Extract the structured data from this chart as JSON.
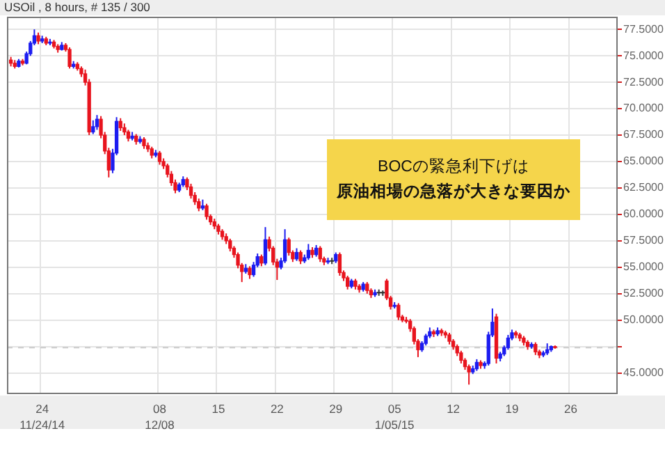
{
  "chart_data": {
    "type": "candlestick",
    "title": "USOil , 8 hours, # 135 / 300",
    "categories": [
      null,
      null,
      null,
      null,
      null,
      null,
      null,
      null,
      null,
      "24\n11/24/14",
      null,
      null,
      null,
      null,
      null,
      null,
      null,
      null,
      null,
      null,
      null,
      null,
      null,
      null,
      null,
      null,
      null,
      null,
      null,
      null,
      null,
      null,
      null,
      null,
      null,
      null,
      null,
      null,
      null,
      "08\n12/08",
      null,
      null,
      null,
      null,
      null,
      null,
      null,
      null,
      null,
      null,
      null,
      null,
      null,
      null,
      "15",
      null,
      null,
      null,
      null,
      null,
      null,
      null,
      null,
      null,
      null,
      null,
      null,
      null,
      null,
      "22",
      null,
      null,
      null,
      null,
      null,
      null,
      null,
      null,
      null,
      null,
      null,
      null,
      null,
      null,
      "29",
      null,
      null,
      null,
      null,
      null,
      null,
      null,
      null,
      null,
      null,
      null,
      null,
      null,
      null,
      "05\n1/05/15",
      null,
      null,
      null,
      null,
      null,
      null,
      null,
      null,
      null,
      null,
      null,
      null,
      null,
      null,
      "12",
      null,
      null,
      null,
      null,
      null,
      null,
      null,
      null,
      null,
      null,
      null,
      null,
      null,
      null,
      "19",
      null,
      null,
      null,
      null,
      null,
      null,
      null,
      null,
      null,
      null,
      null,
      null,
      null,
      null,
      "26",
      null,
      null,
      null,
      null,
      null,
      null,
      null,
      null,
      null,
      null,
      null,
      null
    ],
    "ohlc": [
      null,
      [
        74.6,
        74.9,
        74.0,
        74.3
      ],
      [
        74.3,
        74.6,
        73.8,
        74.0
      ],
      [
        74.0,
        74.7,
        73.9,
        74.5
      ],
      [
        74.5,
        74.7,
        74.1,
        74.3
      ],
      [
        74.3,
        75.4,
        74.2,
        75.2
      ],
      [
        75.2,
        76.4,
        75.0,
        76.2
      ],
      [
        76.2,
        77.5,
        76.0,
        76.9
      ],
      [
        76.9,
        77.2,
        76.1,
        76.4
      ],
      [
        76.4,
        76.9,
        76.2,
        76.6
      ],
      [
        76.6,
        76.8,
        76.0,
        76.2
      ],
      [
        76.2,
        76.6,
        76.0,
        76.3
      ],
      [
        76.3,
        76.5,
        75.7,
        75.9
      ],
      [
        75.9,
        76.1,
        75.3,
        75.6
      ],
      [
        75.6,
        76.3,
        75.5,
        76.0
      ],
      [
        76.0,
        76.2,
        75.4,
        75.6
      ],
      [
        75.6,
        75.8,
        73.8,
        74.0
      ],
      [
        74.0,
        74.5,
        73.8,
        74.2
      ],
      [
        74.2,
        74.4,
        73.6,
        73.8
      ],
      [
        73.8,
        74.0,
        73.0,
        73.3
      ],
      [
        73.3,
        73.7,
        72.2,
        72.5
      ],
      [
        72.5,
        72.8,
        67.5,
        67.8
      ],
      [
        67.8,
        68.9,
        67.6,
        68.3
      ],
      [
        68.3,
        69.4,
        68.0,
        69.0
      ],
      [
        69.0,
        69.3,
        67.2,
        67.5
      ],
      [
        67.5,
        67.8,
        65.7,
        66.0
      ],
      [
        66.0,
        66.3,
        63.5,
        64.2
      ],
      [
        64.2,
        66.2,
        63.9,
        65.8
      ],
      [
        65.8,
        69.2,
        65.6,
        68.8
      ],
      [
        68.8,
        69.1,
        67.9,
        68.2
      ],
      [
        68.2,
        68.6,
        67.5,
        67.8
      ],
      [
        67.8,
        68.0,
        66.9,
        67.2
      ],
      [
        67.2,
        67.8,
        67.0,
        67.4
      ],
      [
        67.4,
        67.6,
        66.6,
        66.9
      ],
      [
        66.9,
        67.4,
        66.7,
        67.1
      ],
      [
        67.1,
        67.3,
        66.2,
        66.5
      ],
      [
        66.5,
        66.8,
        65.9,
        66.2
      ],
      [
        66.2,
        66.4,
        65.3,
        65.6
      ],
      [
        65.6,
        66.1,
        65.4,
        65.8
      ],
      [
        65.8,
        66.0,
        64.7,
        65.0
      ],
      [
        65.0,
        65.3,
        64.3,
        64.6
      ],
      [
        64.6,
        64.8,
        63.5,
        63.8
      ],
      [
        63.8,
        64.1,
        62.7,
        63.0
      ],
      [
        63.0,
        63.3,
        62.0,
        62.3
      ],
      [
        62.3,
        63.0,
        62.1,
        62.8
      ],
      [
        62.8,
        63.6,
        62.6,
        63.3
      ],
      [
        63.3,
        63.5,
        62.3,
        62.6
      ],
      [
        62.6,
        62.9,
        61.5,
        61.8
      ],
      [
        61.8,
        62.1,
        60.9,
        61.2
      ],
      [
        61.2,
        61.5,
        60.3,
        60.6
      ],
      [
        60.6,
        61.4,
        60.4,
        60.8
      ],
      [
        60.8,
        61.0,
        59.5,
        59.8
      ],
      [
        59.8,
        60.0,
        59.0,
        59.3
      ],
      [
        59.3,
        59.6,
        58.6,
        58.9
      ],
      [
        58.9,
        59.1,
        58.1,
        58.4
      ],
      [
        58.4,
        58.6,
        57.6,
        57.9
      ],
      [
        57.9,
        58.2,
        57.2,
        57.5
      ],
      [
        57.5,
        57.7,
        56.5,
        56.8
      ],
      [
        56.8,
        57.0,
        55.9,
        56.2
      ],
      [
        56.2,
        56.4,
        54.9,
        55.2
      ],
      [
        55.2,
        55.4,
        53.6,
        54.6
      ],
      [
        54.6,
        55.3,
        54.4,
        54.9
      ],
      [
        54.9,
        55.1,
        53.9,
        54.3
      ],
      [
        54.3,
        55.5,
        54.1,
        55.2
      ],
      [
        55.2,
        56.3,
        55.0,
        56.0
      ],
      [
        56.0,
        56.2,
        55.1,
        55.4
      ],
      [
        55.4,
        58.8,
        55.2,
        57.6
      ],
      [
        57.6,
        57.9,
        56.5,
        56.8
      ],
      [
        56.8,
        57.0,
        55.2,
        55.5
      ],
      [
        55.5,
        55.8,
        53.8,
        55.0
      ],
      [
        55.0,
        55.9,
        54.8,
        55.6
      ],
      [
        55.6,
        58.6,
        55.4,
        57.6
      ],
      [
        57.6,
        57.8,
        56.1,
        56.4
      ],
      [
        56.4,
        56.6,
        55.5,
        55.8
      ],
      [
        55.8,
        56.8,
        55.6,
        56.4
      ],
      [
        56.4,
        56.6,
        55.3,
        55.6
      ],
      [
        55.6,
        56.2,
        55.4,
        55.9
      ],
      [
        55.9,
        57.2,
        55.7,
        56.6
      ],
      [
        56.6,
        56.9,
        55.9,
        56.2
      ],
      [
        56.2,
        57.1,
        56.0,
        56.8
      ],
      [
        56.8,
        57.0,
        55.5,
        55.8
      ],
      [
        55.8,
        56.0,
        55.2,
        55.5
      ],
      [
        55.5,
        55.9,
        55.3,
        55.6
      ],
      [
        55.6,
        55.9,
        55.3,
        55.6
      ],
      [
        55.6,
        56.4,
        55.4,
        56.2
      ],
      [
        56.2,
        56.4,
        54.2,
        54.5
      ],
      [
        54.5,
        54.7,
        53.7,
        54.0
      ],
      [
        54.0,
        54.2,
        52.9,
        53.2
      ],
      [
        53.2,
        53.9,
        53.0,
        53.7
      ],
      [
        53.7,
        53.9,
        52.9,
        53.2
      ],
      [
        53.2,
        53.4,
        52.6,
        52.9
      ],
      [
        52.9,
        53.6,
        52.7,
        53.4
      ],
      [
        53.4,
        53.6,
        52.5,
        52.8
      ],
      [
        52.8,
        53.0,
        52.1,
        52.4
      ],
      [
        52.4,
        52.9,
        52.2,
        52.6
      ],
      [
        52.6,
        52.9,
        52.3,
        52.6
      ],
      [
        52.6,
        52.8,
        52.3,
        52.6
      ],
      [
        53.7,
        53.9,
        51.9,
        52.1
      ],
      [
        52.1,
        52.3,
        51.0,
        51.3
      ],
      [
        51.3,
        51.7,
        51.1,
        51.4
      ],
      [
        51.4,
        51.6,
        50.0,
        50.3
      ],
      [
        50.3,
        50.5,
        49.8,
        50.0
      ],
      [
        50.0,
        50.3,
        49.7,
        49.9
      ],
      [
        49.9,
        50.1,
        48.9,
        49.2
      ],
      [
        49.2,
        49.4,
        47.7,
        48.0
      ],
      [
        48.0,
        48.2,
        46.5,
        47.2
      ],
      [
        47.2,
        48.0,
        47.0,
        47.8
      ],
      [
        47.8,
        48.7,
        47.6,
        48.5
      ],
      [
        48.5,
        49.3,
        48.3,
        48.9
      ],
      [
        48.9,
        49.1,
        48.4,
        48.7
      ],
      [
        48.7,
        49.3,
        48.5,
        49.0
      ],
      [
        49.0,
        49.2,
        48.5,
        48.8
      ],
      [
        48.8,
        49.0,
        48.3,
        48.6
      ],
      [
        48.6,
        48.8,
        47.7,
        48.0
      ],
      [
        48.0,
        48.2,
        47.2,
        47.5
      ],
      [
        47.5,
        47.7,
        46.6,
        46.9
      ],
      [
        46.9,
        47.1,
        45.9,
        46.2
      ],
      [
        46.2,
        46.4,
        45.3,
        45.6
      ],
      [
        45.6,
        45.8,
        43.9,
        45.1
      ],
      [
        45.1,
        45.7,
        44.9,
        45.4
      ],
      [
        45.4,
        46.3,
        45.2,
        46.0
      ],
      [
        46.0,
        46.2,
        45.4,
        45.7
      ],
      [
        45.7,
        46.1,
        45.4,
        45.9
      ],
      [
        45.9,
        48.9,
        45.7,
        48.6
      ],
      [
        48.6,
        51.1,
        48.4,
        49.8
      ],
      [
        50.3,
        50.6,
        45.9,
        46.4
      ],
      [
        46.4,
        47.0,
        46.1,
        46.8
      ],
      [
        46.8,
        47.6,
        46.6,
        47.4
      ],
      [
        47.4,
        48.6,
        47.2,
        48.3
      ],
      [
        48.3,
        49.1,
        48.1,
        48.8
      ],
      [
        48.8,
        49.0,
        48.3,
        48.6
      ],
      [
        48.6,
        48.8,
        48.0,
        48.3
      ],
      [
        48.3,
        48.5,
        47.6,
        47.9
      ],
      [
        47.9,
        48.1,
        47.2,
        47.5
      ],
      [
        47.5,
        47.9,
        47.3,
        47.7
      ],
      [
        47.7,
        47.9,
        46.7,
        47.0
      ],
      [
        47.0,
        47.2,
        46.4,
        46.7
      ],
      [
        46.7,
        47.1,
        46.5,
        46.9
      ],
      [
        46.9,
        47.8,
        46.7,
        47.2
      ],
      [
        47.2,
        47.6,
        47.0,
        47.5
      ],
      [
        47.5,
        47.6,
        47.3,
        47.4
      ],
      null,
      null,
      null,
      null,
      null,
      null,
      null,
      null,
      null,
      null,
      null,
      null,
      null,
      null,
      null,
      null
    ],
    "colors": [
      null,
      "#e8141e",
      "#e8141e",
      "#1c1cf0",
      "#e8141e",
      "#1c1cf0",
      "#1c1cf0",
      "#1c1cf0",
      "#e8141e",
      "#1c1cf0",
      "#e8141e",
      "#1c1cf0",
      "#e8141e",
      "#e8141e",
      "#1c1cf0",
      "#e8141e",
      "#e8141e",
      "#1c1cf0",
      "#e8141e",
      "#e8141e",
      "#e8141e",
      "#e8141e",
      "#1c1cf0",
      "#1c1cf0",
      "#e8141e",
      "#e8141e",
      "#e8141e",
      "#1c1cf0",
      "#1c1cf0",
      "#e8141e",
      "#e8141e",
      "#e8141e",
      "#1c1cf0",
      "#e8141e",
      "#1c1cf0",
      "#e8141e",
      "#e8141e",
      "#e8141e",
      "#1c1cf0",
      "#e8141e",
      "#e8141e",
      "#e8141e",
      "#e8141e",
      "#e8141e",
      "#1c1cf0",
      "#1c1cf0",
      "#e8141e",
      "#e8141e",
      "#e8141e",
      "#e8141e",
      "#1c1cf0",
      "#e8141e",
      "#e8141e",
      "#e8141e",
      "#e8141e",
      "#e8141e",
      "#e8141e",
      "#e8141e",
      "#e8141e",
      "#e8141e",
      "#e8141e",
      "#1c1cf0",
      "#e8141e",
      "#1c1cf0",
      "#1c1cf0",
      "#e8141e",
      "#1c1cf0",
      "#e8141e",
      "#e8141e",
      "#e8141e",
      "#1c1cf0",
      "#1c1cf0",
      "#e8141e",
      "#e8141e",
      "#1c1cf0",
      "#e8141e",
      "#1c1cf0",
      "#1c1cf0",
      "#e8141e",
      "#1c1cf0",
      "#e8141e",
      "#e8141e",
      "#1c1cf0",
      "#333333",
      "#1c1cf0",
      "#e8141e",
      "#e8141e",
      "#e8141e",
      "#1c1cf0",
      "#e8141e",
      "#e8141e",
      "#1c1cf0",
      "#e8141e",
      "#e8141e",
      "#1c1cf0",
      "#333333",
      "#333333",
      "#e8141e",
      "#e8141e",
      "#1c1cf0",
      "#e8141e",
      "#e8141e",
      "#e8141e",
      "#e8141e",
      "#e8141e",
      "#e8141e",
      "#1c1cf0",
      "#1c1cf0",
      "#1c1cf0",
      "#e8141e",
      "#1c1cf0",
      "#e8141e",
      "#e8141e",
      "#e8141e",
      "#e8141e",
      "#e8141e",
      "#e8141e",
      "#e8141e",
      "#e8141e",
      "#1c1cf0",
      "#1c1cf0",
      "#e8141e",
      "#1c1cf0",
      "#1c1cf0",
      "#1c1cf0",
      "#e8141e",
      "#1c1cf0",
      "#1c1cf0",
      "#1c1cf0",
      "#1c1cf0",
      "#e8141e",
      "#e8141e",
      "#e8141e",
      "#e8141e",
      "#1c1cf0",
      "#e8141e",
      "#e8141e",
      "#1c1cf0",
      "#1c1cf0",
      "#1c1cf0",
      "#e8141e",
      null,
      null,
      null,
      null,
      null,
      null,
      null,
      null,
      null,
      null,
      null,
      null,
      null,
      null,
      null,
      null
    ],
    "ylim": [
      43.0,
      78.7
    ],
    "yticks": [
      {
        "value": 45,
        "label": "45.0000"
      },
      {
        "value": 47.5,
        "label": null
      },
      {
        "value": 50,
        "label": "50.0000"
      },
      {
        "value": 52.5,
        "label": "52.5000"
      },
      {
        "value": 55,
        "label": "55.0000"
      },
      {
        "value": 57.5,
        "label": "57.5000"
      },
      {
        "value": 60,
        "label": "60.0000"
      },
      {
        "value": 62.5,
        "label": "62.5000"
      },
      {
        "value": 65,
        "label": "65.0000"
      },
      {
        "value": 67.5,
        "label": "67.5000"
      },
      {
        "value": 70,
        "label": "70.0000"
      },
      {
        "value": 72.5,
        "label": "72.5000"
      },
      {
        "value": 75,
        "label": "75.0000"
      },
      {
        "value": 77.5,
        "label": "77.5000"
      }
    ],
    "grid": true,
    "ref_lines": [
      {
        "axis": "y",
        "value": 47.4,
        "color": "#cccccc",
        "line_style": "dashed"
      }
    ],
    "annotations": [
      "BOCの緊急利下げは",
      "原油相場の急落が大きな要因か"
    ]
  }
}
